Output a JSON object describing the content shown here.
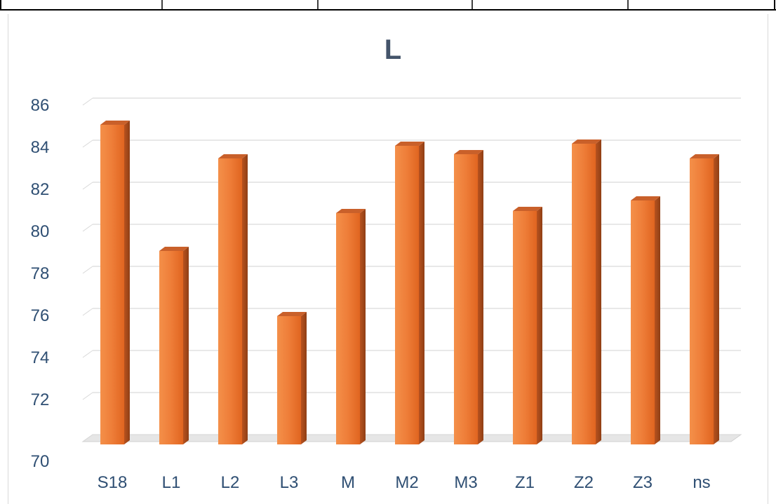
{
  "chart_data": {
    "type": "bar",
    "title": "L",
    "categories": [
      "S18",
      "L1",
      "L2",
      "L3",
      "M",
      "M2",
      "M3",
      "Z1",
      "Z2",
      "Z3",
      "ns"
    ],
    "values": [
      85.2,
      79.2,
      83.6,
      76.1,
      81.0,
      84.2,
      83.8,
      81.1,
      84.3,
      81.6,
      83.6
    ],
    "ylim": [
      70,
      86
    ],
    "yticks": [
      72,
      74,
      76,
      78,
      80,
      82,
      84,
      86
    ],
    "ylabel": "",
    "xlabel": "",
    "grid": true,
    "legend": "none",
    "colors": {
      "bar_front": "#e96f2a",
      "bar_side": "#a54a1c",
      "bar_top": "#c9602a",
      "grid": "#d9d9d9",
      "text": "#2f4f73",
      "title": "#44546a"
    }
  }
}
